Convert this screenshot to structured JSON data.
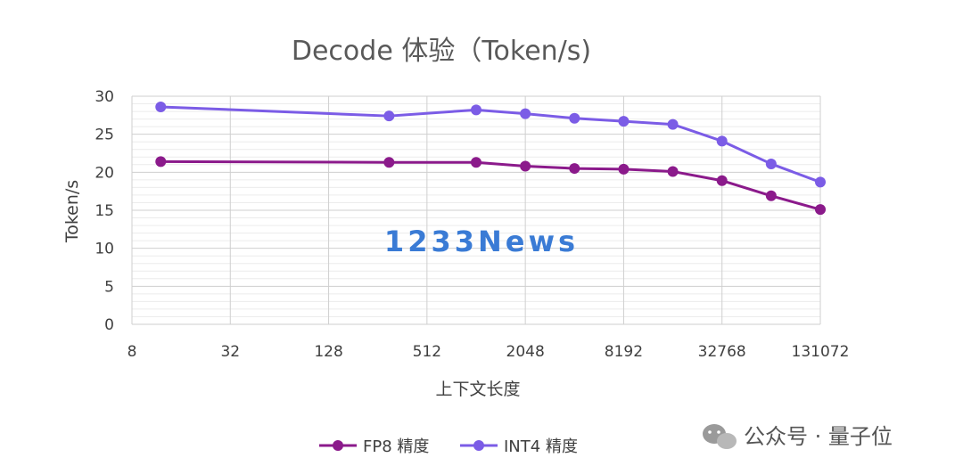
{
  "chart_data": {
    "type": "line",
    "title": "Decode 体验（Token/s)",
    "xlabel": "上下文长度",
    "ylabel": "Token/s",
    "x_scale": "log2",
    "x_ticks": [
      8,
      32,
      128,
      512,
      2048,
      8192,
      32768,
      131072
    ],
    "x_tick_labels": [
      "8",
      "32",
      "128",
      "512",
      "2048",
      "8192",
      "32768",
      "131072"
    ],
    "y_ticks": [
      0,
      5,
      10,
      15,
      20,
      25,
      30
    ],
    "y_tick_labels": [
      "0",
      "5",
      "10",
      "15",
      "20",
      "25",
      "30"
    ],
    "ylim": [
      0,
      30
    ],
    "xlim": [
      8,
      131072
    ],
    "grid": true,
    "legend_position": "bottom",
    "x": [
      12,
      300,
      1024,
      2048,
      4096,
      8192,
      16384,
      32768,
      65536,
      131072
    ],
    "series": [
      {
        "name": "FP8 精度",
        "color": "#8b1a8b",
        "values": [
          21.4,
          21.3,
          21.3,
          20.8,
          20.5,
          20.4,
          20.1,
          18.9,
          16.9,
          15.1
        ]
      },
      {
        "name": "INT4 精度",
        "color": "#7b5ce6",
        "values": [
          28.6,
          27.4,
          28.2,
          27.7,
          27.1,
          26.7,
          26.3,
          24.1,
          21.1,
          18.7
        ]
      }
    ]
  },
  "watermark": {
    "text": "1233News",
    "color": "#3a7bd5"
  },
  "source": {
    "text": "公众号 · 量子位",
    "icon": "wechat-icon"
  }
}
